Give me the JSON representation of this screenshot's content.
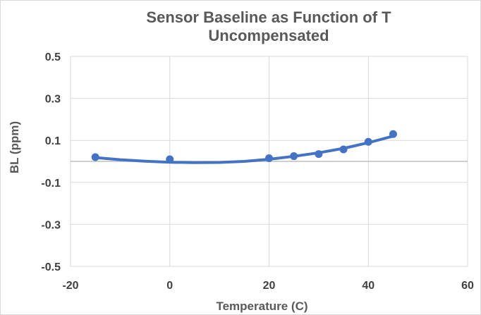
{
  "chart_data": {
    "type": "scatter",
    "title_line1": "Sensor Baseline as Function of T",
    "title_line2": "Uncompensated",
    "xlabel": "Temperature (C)",
    "ylabel": "BL (ppm)",
    "xlim": [
      -20,
      60
    ],
    "ylim": [
      -0.5,
      0.5
    ],
    "x_ticks": [
      -20,
      0,
      20,
      40,
      60
    ],
    "y_ticks": [
      0.5,
      0.3,
      0.1,
      -0.1,
      -0.3,
      -0.5
    ],
    "x_tick_labels": [
      "-20",
      "0",
      "20",
      "40",
      "60"
    ],
    "y_tick_labels": [
      "0.5",
      "0.3",
      "0.1",
      "-0.1",
      "-0.3",
      "-0.5"
    ],
    "grid": true,
    "legend": "none",
    "series": [
      {
        "x": [
          -15,
          0,
          20,
          25,
          30,
          35,
          40,
          45
        ],
        "y": [
          0.02,
          0.01,
          0.015,
          0.025,
          0.035,
          0.057,
          0.093,
          0.13
        ],
        "color": "#4472c4"
      }
    ],
    "trendline": {
      "type": "polynomial",
      "x": [
        -15,
        -10,
        -5,
        0,
        5,
        10,
        15,
        20,
        25,
        30,
        35,
        40,
        45
      ],
      "y": [
        0.018,
        0.008,
        0.001,
        -0.004,
        -0.006,
        -0.005,
        0.0,
        0.01,
        0.024,
        0.041,
        0.062,
        0.089,
        0.12
      ],
      "color": "#4472c4"
    }
  }
}
